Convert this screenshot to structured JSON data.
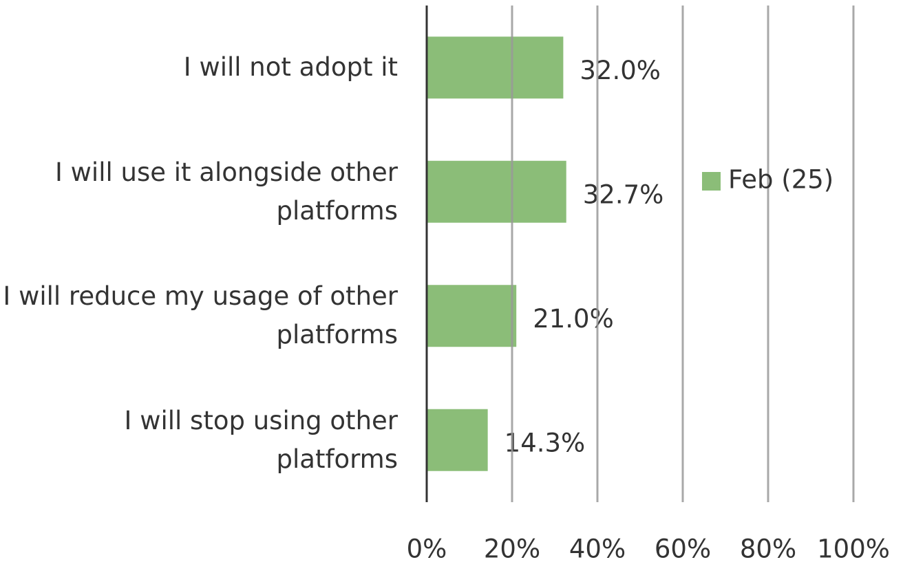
{
  "chart_data": {
    "type": "bar",
    "orientation": "horizontal",
    "categories": [
      "I will not adopt it",
      "I will use it alongside other platforms",
      "I will reduce my usage of other platforms",
      "I will stop using other platforms"
    ],
    "series": [
      {
        "name": "Feb (25)",
        "color": "#8bbd78",
        "values": [
          32.0,
          32.7,
          21.0,
          14.3
        ],
        "value_labels": [
          "32.0%",
          "32.7%",
          "21.0%",
          "14.3%"
        ]
      }
    ],
    "xlim": [
      0,
      100
    ],
    "xticks": [
      {
        "value": 0,
        "label": "0%"
      },
      {
        "value": 20,
        "label": "20%"
      },
      {
        "value": 40,
        "label": "40%"
      },
      {
        "value": 60,
        "label": "60%"
      },
      {
        "value": 80,
        "label": "80%"
      },
      {
        "value": 100,
        "label": "100%"
      }
    ],
    "grid": true,
    "legend": "right"
  }
}
